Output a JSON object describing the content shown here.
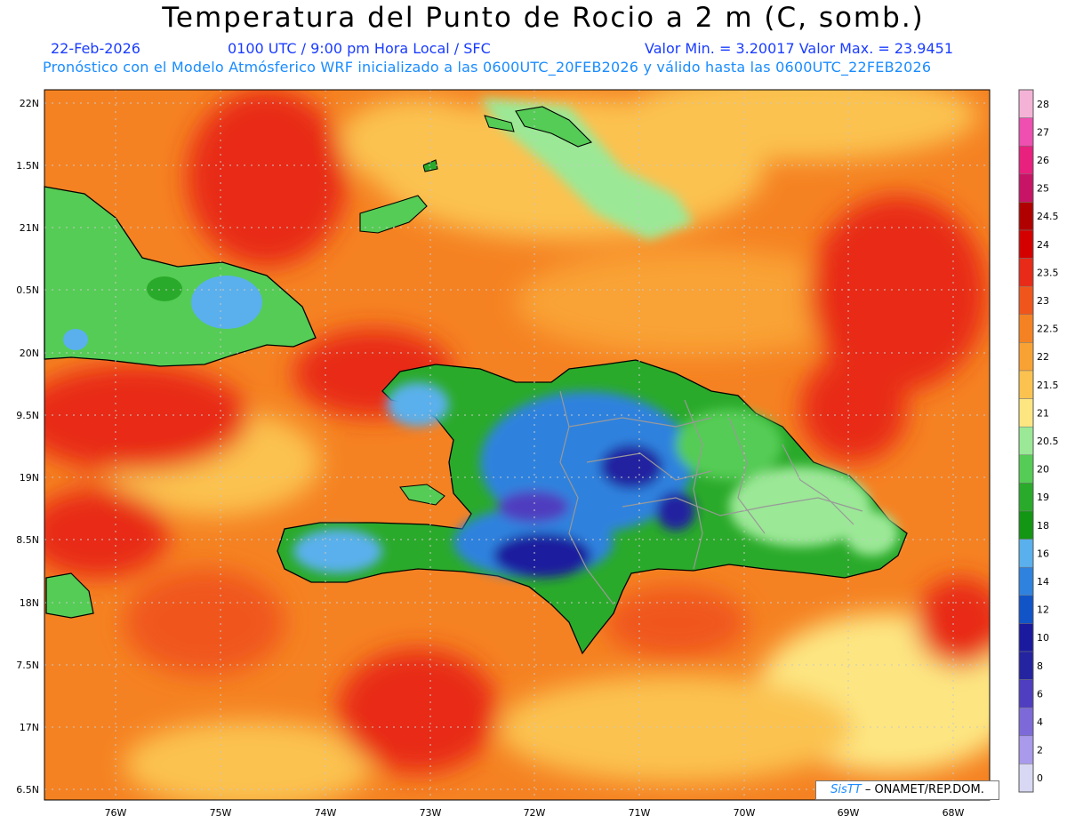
{
  "title": "Temperatura del Punto de Rocio a 2 m (C, somb.)",
  "date": "22-Feb-2026",
  "time": "0100 UTC / 9:00 pm Hora Local / SFC",
  "minmax": "Valor Min. = 3.20017  Valor Max. = 23.9451",
  "forecast": "Pronóstico con el Modelo Atmósferico WRF inicializado a las 0600UTC_20FEB2026 y válido hasta las  0600UTC_22FEB2026",
  "lat_labels": [
    "22N",
    "1.5N",
    "21N",
    "0.5N",
    "20N",
    "9.5N",
    "19N",
    "8.5N",
    "18N",
    "7.5N",
    "17N",
    "6.5N"
  ],
  "lon_labels": [
    "76W",
    "75W",
    "74W",
    "73W",
    "72W",
    "71W",
    "70W",
    "69W",
    "68W"
  ],
  "legend": {
    "labels": [
      "28",
      "27",
      "26",
      "25",
      "24.5",
      "24",
      "23.5",
      "23",
      "22.5",
      "22",
      "21.5",
      "21",
      "20.5",
      "20",
      "19",
      "18",
      "16",
      "14",
      "12",
      "10",
      "8",
      "6",
      "4",
      "2",
      "0"
    ],
    "colors": [
      "#f4b3d6",
      "#ee4fb0",
      "#e8207e",
      "#c81466",
      "#b00000",
      "#d40000",
      "#e82a18",
      "#f0561c",
      "#f58222",
      "#f9a234",
      "#fbc250",
      "#fde682",
      "#9be896",
      "#55cc55",
      "#2aaa2a",
      "#139613",
      "#5ab0ec",
      "#2f82de",
      "#1054c8",
      "#1a1a9e",
      "#2424a0",
      "#4f3ec0",
      "#7d6ad8",
      "#a99aec",
      "#d8d8f4"
    ]
  },
  "credit": {
    "logo": "SisTT",
    "text": " – ONAMET/REP.DOM."
  }
}
